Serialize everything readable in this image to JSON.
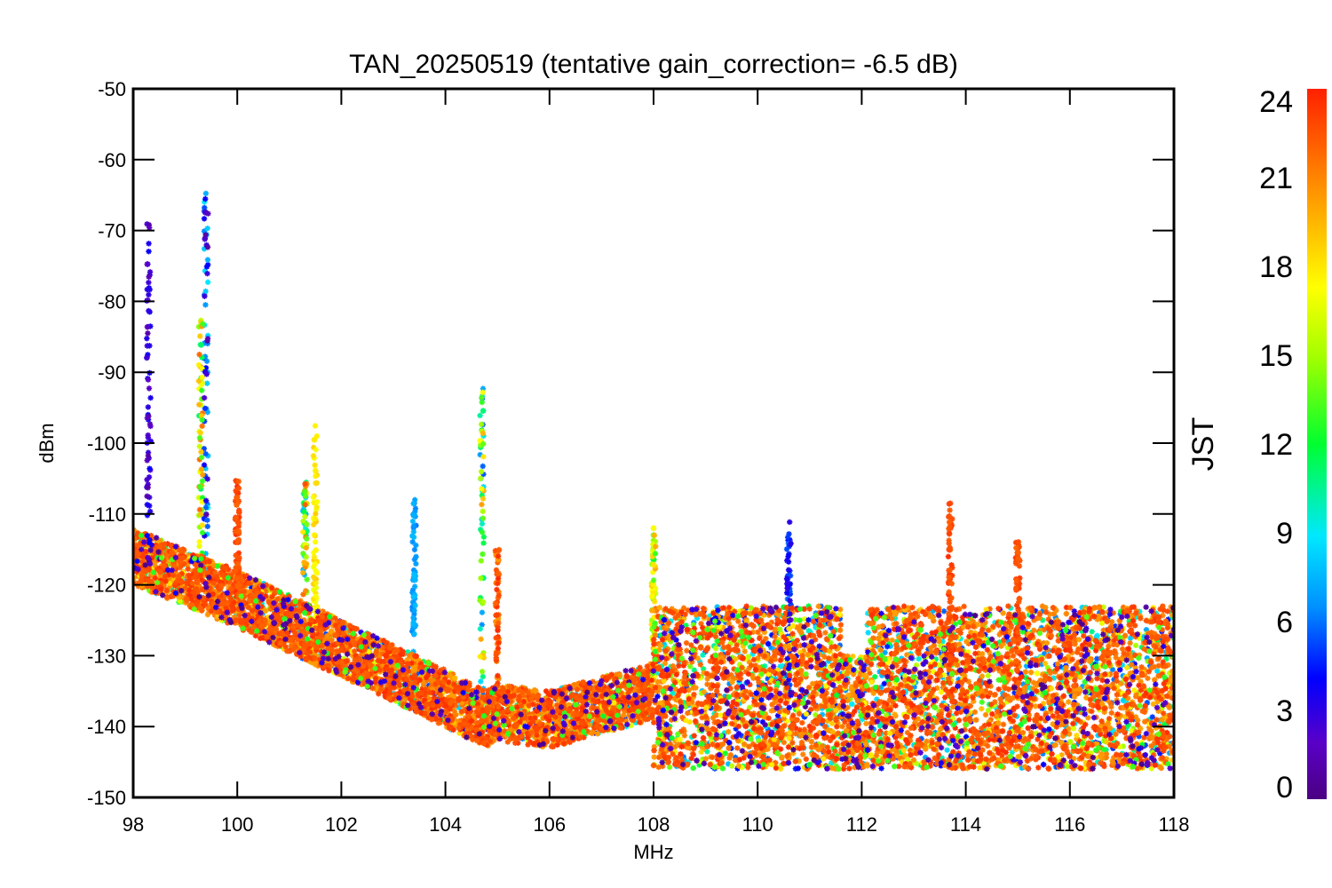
{
  "chart_data": {
    "type": "scatter",
    "title": "TAN_20250519 (tentative gain_correction= -6.5 dB)",
    "xlabel": "MHz",
    "ylabel": "dBm",
    "xlim": [
      98,
      118
    ],
    "ylim": [
      -150,
      -50
    ],
    "x_ticks": [
      "98",
      "100",
      "102",
      "104",
      "106",
      "108",
      "110",
      "112",
      "114",
      "116",
      "118"
    ],
    "y_ticks": [
      "-50",
      "-60",
      "-70",
      "-80",
      "-90",
      "-100",
      "-110",
      "-120",
      "-130",
      "-140",
      "-150"
    ],
    "marker": "asterisk",
    "grid": false,
    "colorbar": {
      "title": "JST",
      "range": [
        0,
        24
      ],
      "ticks": [
        "0",
        "3",
        "6",
        "9",
        "12",
        "15",
        "18",
        "21",
        "24"
      ],
      "colormap": "rainbow"
    },
    "noise_floor": {
      "x": [
        98,
        100,
        102,
        104,
        104.8,
        105.0,
        106,
        107,
        108,
        110,
        112,
        114,
        116,
        118
      ],
      "y": [
        -116,
        -122,
        -129,
        -136,
        -139,
        -138,
        -139,
        -137,
        -135,
        -136,
        -137,
        -136,
        -136,
        -137
      ]
    },
    "noise_band_above_108": {
      "x": [
        108,
        118
      ],
      "y_range": [
        -146,
        -123
      ]
    },
    "signals": [
      {
        "x": 98.3,
        "peak_y": -68,
        "hours": [
          1,
          4
        ]
      },
      {
        "x": 99.3,
        "peak_y": -82,
        "hours": [
          10,
          22
        ]
      },
      {
        "x": 99.4,
        "peak_y": -63,
        "hours": [
          1,
          9
        ]
      },
      {
        "x": 100.0,
        "peak_y": -105,
        "hours": [
          22,
          24
        ]
      },
      {
        "x": 101.3,
        "peak_y": -105,
        "hours": [
          7,
          23
        ]
      },
      {
        "x": 101.5,
        "peak_y": -97,
        "hours": [
          17,
          19
        ]
      },
      {
        "x": 103.4,
        "peak_y": -107,
        "hours": [
          6,
          8
        ]
      },
      {
        "x": 104.7,
        "peak_y": -91.5,
        "hours": [
          5,
          20
        ]
      },
      {
        "x": 105.0,
        "peak_y": -115,
        "hours": [
          20,
          24
        ]
      },
      {
        "x": 108.0,
        "peak_y": -111,
        "hours": [
          12,
          20
        ]
      },
      {
        "x": 110.6,
        "peak_y": -110.5,
        "hours": [
          3,
          6
        ]
      },
      {
        "x": 113.7,
        "peak_y": -108.5,
        "hours": [
          22,
          24
        ]
      },
      {
        "x": 115.0,
        "peak_y": -113.5,
        "hours": [
          22,
          24
        ]
      }
    ]
  }
}
